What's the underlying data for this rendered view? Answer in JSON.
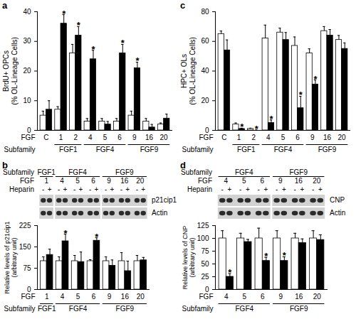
{
  "chart_data": [
    {
      "type": "bar",
      "panel": "a",
      "y_label": [
        "BrdU+ OPCs",
        "(% OL-Lineage Cells)"
      ],
      "x_label": "FGF",
      "group_label": "Subfamily",
      "categories": [
        "C",
        "1",
        "2",
        "4",
        "5",
        "6",
        "9",
        "16",
        "20"
      ],
      "subfamilies": [
        {
          "name": "FGF1",
          "members": [
            "1",
            "2"
          ]
        },
        {
          "name": "FGF4",
          "members": [
            "4",
            "5",
            "6"
          ]
        },
        {
          "name": "FGF9",
          "members": [
            "9",
            "16",
            "20"
          ]
        }
      ],
      "series": [
        {
          "color": "#ffffff",
          "values": [
            5,
            7,
            26,
            3,
            3,
            3,
            5,
            3,
            2
          ],
          "errors": [
            1.5,
            1,
            3,
            1,
            1,
            1,
            1.5,
            1,
            0.5
          ]
        },
        {
          "color": "#000000",
          "values": [
            7,
            36,
            32,
            24,
            2,
            26,
            21,
            1,
            4
          ],
          "errors": [
            3,
            3,
            3,
            3,
            1,
            3,
            2,
            1,
            1.5
          ],
          "annotations": [
            null,
            "*",
            "*",
            "*",
            null,
            "*",
            "*",
            null,
            null
          ]
        }
      ],
      "ylim": [
        0,
        40
      ],
      "yticks": [
        0,
        10,
        20,
        30,
        40
      ]
    },
    {
      "type": "bar",
      "panel": "b",
      "y_label": [
        "Relative levels of p21cip1",
        "(arbitrary unit)"
      ],
      "x_label": "FGF",
      "group_label": "Subfamily",
      "categories": [
        "1",
        "4",
        "5",
        "6",
        "9",
        "16",
        "20"
      ],
      "subfamilies": [
        {
          "name": "FGF1",
          "members": [
            "1"
          ]
        },
        {
          "name": "FGF4",
          "members": [
            "4",
            "5",
            "6"
          ]
        },
        {
          "name": "FGF9",
          "members": [
            "9",
            "16",
            "20"
          ]
        }
      ],
      "blot": {
        "treatment_label": "Heparin",
        "levels": [
          "-",
          "+"
        ],
        "rows": [
          "p21cip1",
          "Actin"
        ]
      },
      "series": [
        {
          "color": "#ffffff",
          "values": [
            100,
            100,
            100,
            100,
            100,
            100,
            100
          ],
          "errors": [
            15,
            15,
            20,
            5,
            15,
            30,
            20
          ]
        },
        {
          "color": "#000000",
          "values": [
            122,
            170,
            97,
            172,
            84,
            65,
            103
          ],
          "errors": [
            20,
            25,
            35,
            10,
            20,
            35,
            10
          ],
          "annotations": [
            null,
            "*",
            null,
            "*",
            null,
            null,
            null
          ]
        }
      ],
      "ylim": [
        0,
        225
      ],
      "yticks": [
        0,
        75,
        150,
        225
      ]
    },
    {
      "type": "bar",
      "panel": "c",
      "y_label": [
        "HPC+ OLs",
        "(% OL-Lineage Cells)"
      ],
      "x_label": "FGF",
      "group_label": "Subfamily",
      "categories": [
        "C",
        "1",
        "2",
        "4",
        "5",
        "6",
        "9",
        "16",
        "20"
      ],
      "subfamilies": [
        {
          "name": "FGF1",
          "members": [
            "1",
            "2"
          ]
        },
        {
          "name": "FGF4",
          "members": [
            "4",
            "5",
            "6"
          ]
        },
        {
          "name": "FGF9",
          "members": [
            "9",
            "16",
            "20"
          ]
        }
      ],
      "series": [
        {
          "color": "#ffffff",
          "values": [
            65,
            4,
            1,
            62,
            66,
            57,
            52,
            67,
            61
          ],
          "errors": [
            2,
            1,
            0.5,
            9,
            3,
            6,
            3,
            3,
            3
          ]
        },
        {
          "color": "#000000",
          "values": [
            54,
            1,
            0,
            5,
            61,
            15,
            31,
            64,
            55
          ],
          "errors": [
            7,
            0.5,
            0.3,
            2,
            5,
            8,
            3,
            4,
            4
          ],
          "annotations": [
            null,
            "*",
            "*",
            "*",
            null,
            "*",
            "*",
            null,
            null
          ]
        }
      ],
      "ylim": [
        0,
        80
      ],
      "yticks": [
        0,
        20,
        40,
        60,
        80
      ]
    },
    {
      "type": "bar",
      "panel": "d",
      "y_label": [
        "Relative levels of CNP",
        "(arbitrary unit)"
      ],
      "x_label": "FGF",
      "group_label": "Subfamily",
      "categories": [
        "4",
        "5",
        "6",
        "9",
        "16",
        "20"
      ],
      "subfamilies": [
        {
          "name": "FGF4",
          "members": [
            "4",
            "5",
            "6"
          ]
        },
        {
          "name": "FGF9",
          "members": [
            "9",
            "16",
            "20"
          ]
        }
      ],
      "blot": {
        "treatment_label": "Heparin",
        "levels": [
          "-",
          "+"
        ],
        "rows": [
          "CNP",
          "Actin"
        ]
      },
      "series": [
        {
          "color": "#ffffff",
          "values": [
            100,
            100,
            100,
            100,
            100,
            100
          ],
          "errors": [
            15,
            10,
            20,
            15,
            10,
            15
          ]
        },
        {
          "color": "#000000",
          "values": [
            25,
            93,
            56,
            56,
            91,
            97
          ],
          "errors": [
            6,
            5,
            7,
            8,
            8,
            10
          ],
          "annotations": [
            "*",
            null,
            "*",
            "*",
            null,
            null
          ]
        }
      ],
      "ylim": [
        0,
        125
      ],
      "yticks": [
        0,
        25,
        50,
        75,
        100,
        125
      ]
    }
  ]
}
